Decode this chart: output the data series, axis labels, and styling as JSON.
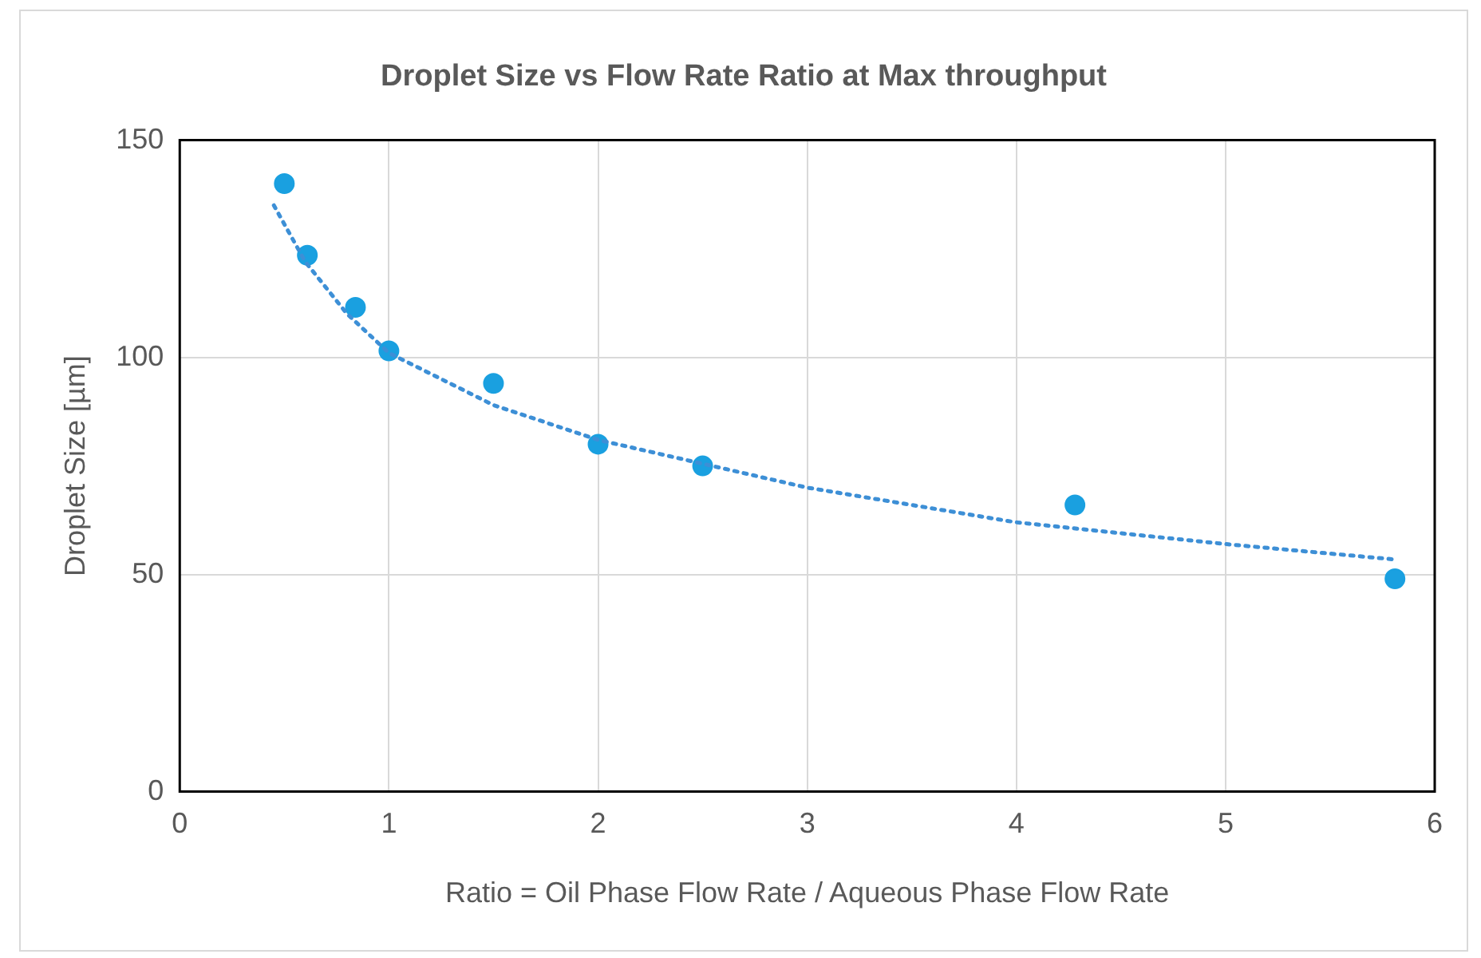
{
  "chart_data": {
    "type": "scatter",
    "title": "Droplet Size vs Flow Rate Ratio at Max throughput",
    "xlabel": "Ratio = Oil Phase Flow Rate / Aqueous Phase Flow Rate",
    "ylabel": "Droplet Size [µm]",
    "xlim": [
      0,
      6
    ],
    "xticks": [
      0,
      1,
      2,
      3,
      4,
      5,
      6
    ],
    "ylim": [
      0,
      150
    ],
    "yticks": [
      0,
      50,
      100,
      150
    ],
    "grid": true,
    "legend": false,
    "series": [
      {
        "type": "scatter",
        "color": "#1aa0e0",
        "marker": "circle",
        "x": [
          0.5,
          0.61,
          0.84,
          1.0,
          1.5,
          2.0,
          2.5,
          4.28,
          5.81
        ],
        "values": [
          140,
          123.5,
          111.5,
          101.5,
          94,
          80,
          75,
          66,
          49
        ]
      },
      {
        "type": "line",
        "color": "#3d8fd6",
        "marker": "none",
        "line_style": "dotted",
        "x": [
          0.45,
          0.6,
          0.8,
          1,
          1.5,
          2,
          3,
          4,
          5,
          5.8
        ],
        "values": [
          135,
          122,
          110,
          101,
          89,
          81,
          70,
          62,
          57,
          53.5
        ]
      }
    ]
  }
}
